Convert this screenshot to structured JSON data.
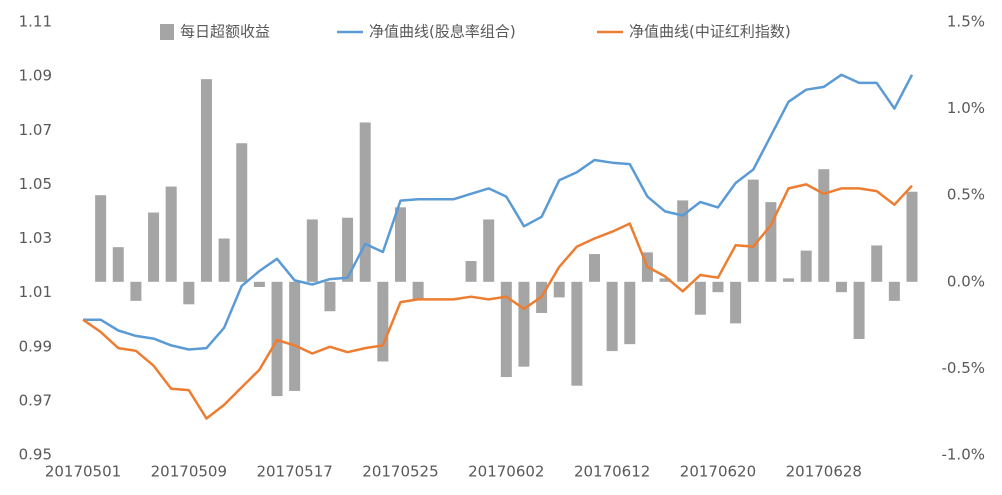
{
  "chart_data": {
    "type": "combo",
    "categories": [
      "20170501",
      null,
      null,
      null,
      null,
      null,
      "20170509",
      null,
      null,
      null,
      null,
      null,
      "20170517",
      null,
      null,
      null,
      null,
      null,
      "20170525",
      null,
      null,
      null,
      null,
      null,
      "20170602",
      null,
      null,
      null,
      null,
      null,
      "20170612",
      null,
      null,
      null,
      null,
      null,
      "20170620",
      null,
      null,
      null,
      null,
      null,
      "20170628",
      null,
      null,
      null,
      null,
      null
    ],
    "series": [
      {
        "name": "每日超额收益",
        "type": "bar",
        "axis": "y2",
        "color": "#a5a5a5",
        "values": [
          null,
          0.5,
          0.2,
          -0.11,
          0.4,
          0.55,
          -0.13,
          1.17,
          0.25,
          0.8,
          -0.03,
          -0.66,
          -0.63,
          0.36,
          -0.17,
          0.37,
          0.92,
          -0.46,
          0.43,
          -0.1,
          0,
          0,
          0.12,
          0.36,
          -0.55,
          -0.49,
          -0.18,
          -0.09,
          -0.6,
          0.16,
          -0.4,
          -0.36,
          0.17,
          0.02,
          0.47,
          -0.19,
          -0.06,
          -0.24,
          0.59,
          0.46,
          0.02,
          0.18,
          0.65,
          -0.06,
          -0.33,
          0.21,
          -0.11,
          0.52
        ]
      },
      {
        "name": "净值曲线(股息率组合)",
        "type": "line",
        "color": "#5b9bd5",
        "values": [
          1.0,
          1.0,
          0.996,
          0.994,
          0.993,
          0.9905,
          0.989,
          0.9895,
          0.997,
          1.0125,
          1.018,
          1.0225,
          1.0145,
          1.013,
          1.015,
          1.0155,
          1.028,
          1.025,
          1.044,
          1.0445,
          1.0445,
          1.0445,
          1.0465,
          1.0485,
          1.0455,
          1.0345,
          1.038,
          1.0515,
          1.0545,
          1.059,
          1.058,
          1.0575,
          1.0455,
          1.04,
          1.0385,
          1.0435,
          1.0415,
          1.0505,
          1.0555,
          1.068,
          1.0805,
          1.085,
          1.086,
          1.0905,
          1.0875,
          1.0875,
          1.078,
          1.0905
        ]
      },
      {
        "name": "净值曲线(中证红利指数)",
        "type": "line",
        "color": "#ed7d31",
        "values": [
          1.0,
          0.9955,
          0.9895,
          0.9885,
          0.983,
          0.9745,
          0.974,
          0.9635,
          0.9685,
          0.975,
          0.9815,
          0.9925,
          0.9905,
          0.9875,
          0.99,
          0.988,
          0.9895,
          0.9905,
          1.0065,
          1.0075,
          1.0075,
          1.0075,
          1.0085,
          1.0075,
          1.0085,
          1.004,
          1.0085,
          1.0195,
          1.027,
          1.03,
          1.0325,
          1.0355,
          1.0195,
          1.016,
          1.0105,
          1.0165,
          1.0155,
          1.0275,
          1.027,
          1.035,
          1.0485,
          1.05,
          1.0465,
          1.0485,
          1.0485,
          1.0475,
          1.0425,
          1.0495
        ]
      }
    ],
    "ylim": [
      0.95,
      1.11
    ],
    "yticks": [
      0.95,
      0.97,
      0.99,
      1.01,
      1.03,
      1.05,
      1.07,
      1.09,
      1.11
    ],
    "y2lim": [
      -1.0,
      1.5
    ],
    "y2ticks": [
      {
        "value": -1.0,
        "label": "-1.0%"
      },
      {
        "value": -0.5,
        "label": "-0.5%"
      },
      {
        "value": 0,
        "label": "0.0%"
      },
      {
        "value": 0.5,
        "label": "0.5%"
      },
      {
        "value": 1.0,
        "label": "1.0%"
      },
      {
        "value": 1.5,
        "label": "1.5%"
      }
    ],
    "legend": "top",
    "grid": false
  }
}
